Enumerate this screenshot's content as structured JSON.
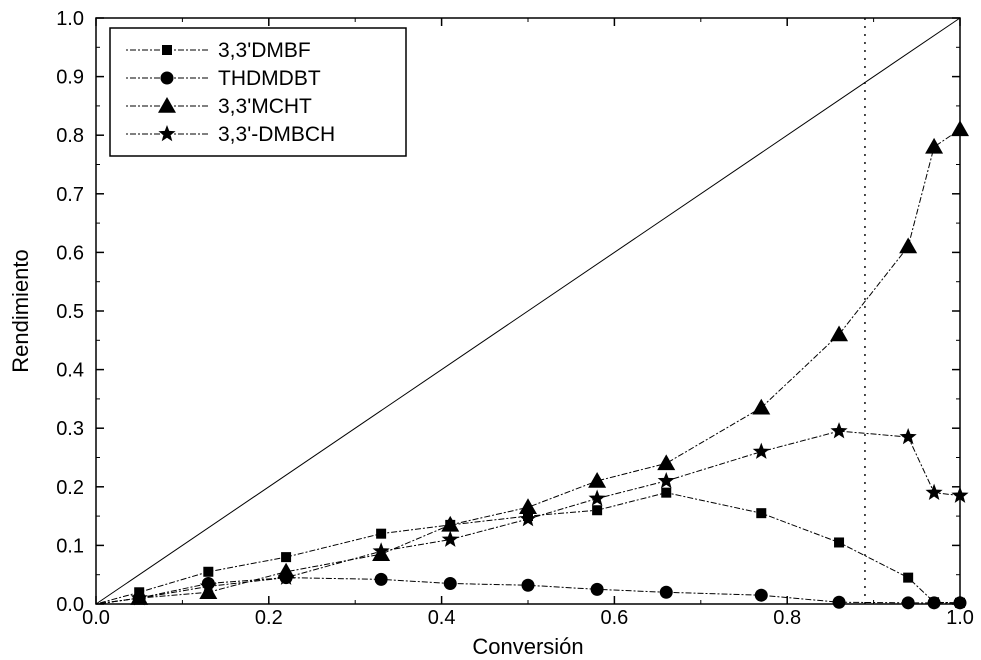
{
  "chart_data": {
    "type": "line",
    "title": "",
    "xlabel": "Conversión",
    "ylabel": "Rendimiento",
    "xlim": [
      0.0,
      1.0
    ],
    "ylim": [
      0.0,
      1.0
    ],
    "xticks": [
      "0.0",
      "0.2",
      "0.4",
      "0.6",
      "0.8",
      "1.0"
    ],
    "yticks": [
      "0.0",
      "0.1",
      "0.2",
      "0.3",
      "0.4",
      "0.5",
      "0.6",
      "0.7",
      "0.8",
      "0.9",
      "1.0"
    ],
    "grid": false,
    "legend_position": "top-left",
    "reference_lines": [
      {
        "kind": "diagonal",
        "from": [
          0.0,
          0.0
        ],
        "to": [
          1.0,
          1.0
        ],
        "style": "solid"
      },
      {
        "kind": "vertical",
        "x": 0.89,
        "style": "dotted"
      }
    ],
    "series": [
      {
        "name": "3,3'DMBF",
        "marker": "square",
        "x": [
          0.0,
          0.05,
          0.13,
          0.22,
          0.33,
          0.41,
          0.5,
          0.58,
          0.66,
          0.77,
          0.86,
          0.94,
          0.97,
          1.0
        ],
        "y": [
          0.0,
          0.02,
          0.055,
          0.08,
          0.12,
          0.135,
          0.15,
          0.16,
          0.19,
          0.155,
          0.105,
          0.045,
          0.003,
          0.002
        ]
      },
      {
        "name": "THDMDBT",
        "marker": "circle",
        "x": [
          0.0,
          0.05,
          0.13,
          0.22,
          0.33,
          0.41,
          0.5,
          0.58,
          0.66,
          0.77,
          0.86,
          0.94,
          0.97,
          1.0
        ],
        "y": [
          0.0,
          0.01,
          0.035,
          0.045,
          0.042,
          0.035,
          0.032,
          0.025,
          0.02,
          0.015,
          0.003,
          0.002,
          0.002,
          0.002
        ]
      },
      {
        "name": "3,3'MCHT",
        "marker": "triangle",
        "x": [
          0.0,
          0.05,
          0.13,
          0.22,
          0.33,
          0.41,
          0.5,
          0.58,
          0.66,
          0.77,
          0.86,
          0.94,
          0.97,
          1.0
        ],
        "y": [
          0.0,
          0.01,
          0.02,
          0.055,
          0.085,
          0.135,
          0.165,
          0.21,
          0.24,
          0.335,
          0.46,
          0.61,
          0.78,
          0.81
        ]
      },
      {
        "name": "3,3'-DMBCH",
        "marker": "star",
        "x": [
          0.0,
          0.05,
          0.13,
          0.22,
          0.33,
          0.41,
          0.5,
          0.58,
          0.66,
          0.77,
          0.86,
          0.94,
          0.97,
          1.0
        ],
        "y": [
          0.0,
          0.01,
          0.03,
          0.045,
          0.09,
          0.11,
          0.145,
          0.18,
          0.21,
          0.26,
          0.295,
          0.285,
          0.19,
          0.185
        ]
      }
    ]
  }
}
